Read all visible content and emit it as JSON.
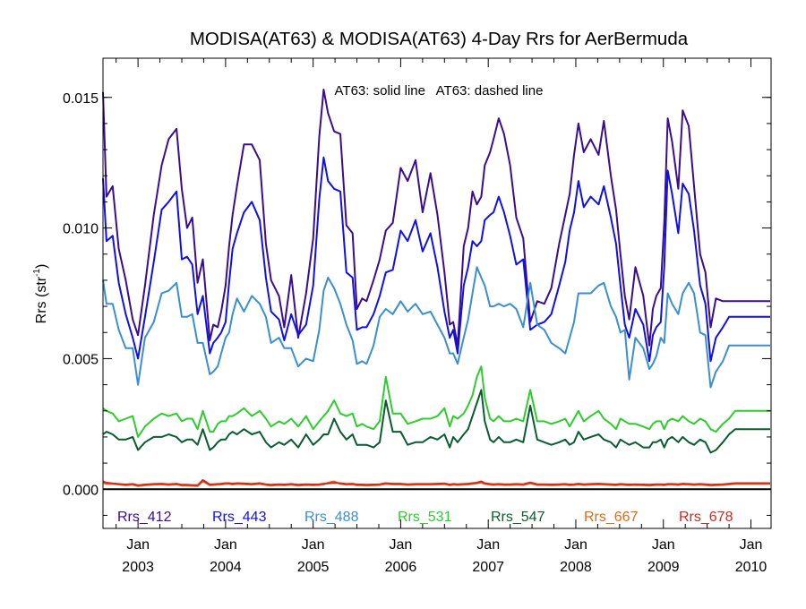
{
  "chart_data": {
    "type": "line",
    "title": "MODISA(AT63) & MODISA(AT63) 4-Day Rrs for AerBermuda",
    "annotation": "AT63: solid line   AT63: dashed line",
    "ylabel_main": "Rrs (str",
    "ylabel_sup": "-1",
    "ylabel_tail": ")",
    "ylim": [
      -0.0015,
      0.0165
    ],
    "xlim": [
      2002.6,
      2010.23
    ],
    "yticks": [
      {
        "v": 0.0,
        "label": "0.000"
      },
      {
        "v": 0.005,
        "label": "0.005"
      },
      {
        "v": 0.01,
        "label": "0.010"
      },
      {
        "v": 0.015,
        "label": "0.015"
      }
    ],
    "xticks": [
      {
        "v": 2003.0,
        "line1": "Jan",
        "line2": "2003"
      },
      {
        "v": 2004.0,
        "line1": "Jan",
        "line2": "2004"
      },
      {
        "v": 2005.0,
        "line1": "Jan",
        "line2": "2005"
      },
      {
        "v": 2006.0,
        "line1": "Jan",
        "line2": "2006"
      },
      {
        "v": 2007.0,
        "line1": "Jan",
        "line2": "2007"
      },
      {
        "v": 2008.0,
        "line1": "Jan",
        "line2": "2008"
      },
      {
        "v": 2009.0,
        "line1": "Jan",
        "line2": "2009"
      },
      {
        "v": 2010.0,
        "line1": "Jan",
        "line2": "2010"
      }
    ],
    "x": [
      2002.58,
      2002.64,
      2002.71,
      2002.78,
      2002.86,
      2002.94,
      2003.0,
      2003.08,
      2003.18,
      2003.27,
      2003.35,
      2003.44,
      2003.5,
      2003.56,
      2003.62,
      2003.68,
      2003.74,
      2003.82,
      2003.86,
      2003.91,
      2003.95,
      2004.0,
      2004.04,
      2004.08,
      2004.13,
      2004.21,
      2004.3,
      2004.39,
      2004.46,
      2004.52,
      2004.61,
      2004.67,
      2004.75,
      2004.83,
      2004.92,
      2005.0,
      2005.07,
      2005.12,
      2005.17,
      2005.24,
      2005.31,
      2005.38,
      2005.45,
      2005.5,
      2005.56,
      2005.61,
      2005.69,
      2005.76,
      2005.83,
      2005.91,
      2006.0,
      2006.08,
      2006.17,
      2006.25,
      2006.34,
      2006.42,
      2006.5,
      2006.56,
      2006.6,
      2006.65,
      2006.72,
      2006.77,
      2006.82,
      2006.87,
      2006.92,
      2006.96,
      2007.02,
      2007.06,
      2007.12,
      2007.18,
      2007.25,
      2007.32,
      2007.4,
      2007.48,
      2007.56,
      2007.64,
      2007.72,
      2007.81,
      2007.88,
      2007.93,
      2007.98,
      2008.03,
      2008.09,
      2008.17,
      2008.26,
      2008.32,
      2008.4,
      2008.46,
      2008.51,
      2008.56,
      2008.61,
      2008.68,
      2008.77,
      2008.84,
      2008.88,
      2008.92,
      2008.97,
      2009.01,
      2009.05,
      2009.1,
      2009.17,
      2009.22,
      2009.29,
      2009.35,
      2009.42,
      2009.48,
      2009.54,
      2009.6,
      2009.68,
      2009.75,
      2009.82,
      2009.88,
      2009.92,
      2009.96,
      2010.02,
      2010.08,
      2010.14,
      2010.22
    ],
    "series": [
      {
        "name": "Rrs_412",
        "color": "#3a0d8f",
        "values": [
          0.0152,
          0.0112,
          0.0116,
          0.0092,
          0.008,
          0.0065,
          0.0059,
          0.0078,
          0.0105,
          0.0124,
          0.0134,
          0.0138,
          0.0115,
          0.01,
          0.0104,
          0.0079,
          0.0088,
          0.0057,
          0.0063,
          0.0062,
          0.0068,
          0.0078,
          0.0093,
          0.0105,
          0.0116,
          0.0132,
          0.0132,
          0.0126,
          0.0094,
          0.008,
          0.0074,
          0.0062,
          0.0082,
          0.0058,
          0.0075,
          0.0096,
          0.0135,
          0.0153,
          0.0144,
          0.0137,
          0.0136,
          0.0101,
          0.0098,
          0.0069,
          0.0073,
          0.0072,
          0.008,
          0.0088,
          0.0099,
          0.0102,
          0.0123,
          0.0118,
          0.0126,
          0.0106,
          0.0121,
          0.0105,
          0.0083,
          0.0063,
          0.0064,
          0.0055,
          0.0093,
          0.01,
          0.0114,
          0.0109,
          0.0112,
          0.0124,
          0.0129,
          0.0134,
          0.0142,
          0.0136,
          0.0124,
          0.0104,
          0.0096,
          0.0064,
          0.0072,
          0.0071,
          0.0077,
          0.0094,
          0.0105,
          0.0113,
          0.0128,
          0.014,
          0.0129,
          0.0134,
          0.0128,
          0.0141,
          0.012,
          0.0107,
          0.009,
          0.0074,
          0.0065,
          0.0085,
          0.0074,
          0.0055,
          0.0069,
          0.0074,
          0.0077,
          0.0102,
          0.0142,
          0.0133,
          0.0115,
          0.0145,
          0.0139,
          0.0116,
          0.009,
          0.0083,
          0.0062,
          0.0073,
          0.0072,
          0.0072,
          0.0072,
          0.0072,
          0.0072,
          0.0072,
          0.0072,
          0.0072,
          0.0072,
          0.0072
        ]
      },
      {
        "name": "Rrs_443",
        "color": "#1010e6",
        "values": [
          0.0119,
          0.0095,
          0.0097,
          0.0079,
          0.0067,
          0.0058,
          0.005,
          0.0066,
          0.0087,
          0.0107,
          0.011,
          0.0114,
          0.0088,
          0.0089,
          0.0086,
          0.0067,
          0.0074,
          0.0052,
          0.0056,
          0.0058,
          0.006,
          0.0064,
          0.0079,
          0.0092,
          0.0098,
          0.0106,
          0.011,
          0.0103,
          0.0081,
          0.0068,
          0.0065,
          0.0057,
          0.0067,
          0.0059,
          0.0063,
          0.0078,
          0.0111,
          0.0127,
          0.0118,
          0.0115,
          0.0114,
          0.0083,
          0.0081,
          0.0061,
          0.0062,
          0.0062,
          0.0067,
          0.0074,
          0.0083,
          0.0084,
          0.0099,
          0.0095,
          0.0103,
          0.0091,
          0.0098,
          0.0085,
          0.0068,
          0.0058,
          0.0061,
          0.0052,
          0.0078,
          0.0085,
          0.0095,
          0.0093,
          0.0095,
          0.0103,
          0.0105,
          0.0106,
          0.0112,
          0.0106,
          0.0097,
          0.0086,
          0.0088,
          0.0061,
          0.0063,
          0.0064,
          0.0067,
          0.0078,
          0.0087,
          0.0099,
          0.0106,
          0.0118,
          0.0108,
          0.0112,
          0.0109,
          0.0116,
          0.0104,
          0.0094,
          0.0078,
          0.0063,
          0.0058,
          0.0069,
          0.0063,
          0.0049,
          0.0059,
          0.0062,
          0.0064,
          0.0085,
          0.0122,
          0.0113,
          0.0098,
          0.0117,
          0.0113,
          0.0099,
          0.0078,
          0.0071,
          0.0049,
          0.0058,
          0.0062,
          0.0066,
          0.0066,
          0.0066,
          0.0066,
          0.0066,
          0.0066,
          0.0066,
          0.0066,
          0.0066
        ]
      },
      {
        "name": "Rrs_488",
        "color": "#3b8fd0",
        "values": [
          0.008,
          0.0071,
          0.0071,
          0.0061,
          0.0054,
          0.0054,
          0.004,
          0.0058,
          0.0064,
          0.0075,
          0.0076,
          0.0079,
          0.0066,
          0.0066,
          0.0067,
          0.0056,
          0.0056,
          0.0044,
          0.0045,
          0.0047,
          0.0052,
          0.0058,
          0.006,
          0.0067,
          0.0073,
          0.0068,
          0.0074,
          0.0071,
          0.0066,
          0.0056,
          0.0058,
          0.0054,
          0.0054,
          0.0047,
          0.005,
          0.0049,
          0.0061,
          0.0076,
          0.0081,
          0.0077,
          0.0071,
          0.0063,
          0.0057,
          0.0048,
          0.0049,
          0.0048,
          0.0055,
          0.0066,
          0.0069,
          0.0067,
          0.0072,
          0.0068,
          0.0071,
          0.0067,
          0.0068,
          0.0063,
          0.0058,
          0.0052,
          0.0052,
          0.0048,
          0.0058,
          0.0065,
          0.0075,
          0.0085,
          0.0081,
          0.0078,
          0.007,
          0.007,
          0.0071,
          0.007,
          0.0071,
          0.0069,
          0.0062,
          0.0079,
          0.0063,
          0.0061,
          0.0056,
          0.0054,
          0.0052,
          0.0058,
          0.0064,
          0.0075,
          0.0075,
          0.0075,
          0.0078,
          0.0079,
          0.007,
          0.0066,
          0.006,
          0.0061,
          0.0042,
          0.0058,
          0.0054,
          0.0046,
          0.0048,
          0.0051,
          0.0058,
          0.0056,
          0.0075,
          0.0071,
          0.0067,
          0.0075,
          0.0079,
          0.0075,
          0.006,
          0.0059,
          0.0039,
          0.0045,
          0.0049,
          0.0055,
          0.0055,
          0.0055,
          0.0055,
          0.0055,
          0.0055,
          0.0055,
          0.0055,
          0.0055
        ]
      },
      {
        "name": "Rrs_531",
        "color": "#2ecc2e",
        "values": [
          0.0031,
          0.003,
          0.0029,
          0.0026,
          0.0027,
          0.0028,
          0.002,
          0.0024,
          0.0027,
          0.0029,
          0.0028,
          0.0029,
          0.0026,
          0.0027,
          0.0027,
          0.0023,
          0.003,
          0.0022,
          0.0022,
          0.0025,
          0.0026,
          0.0026,
          0.0028,
          0.0028,
          0.0029,
          0.0031,
          0.0028,
          0.003,
          0.0027,
          0.0024,
          0.0026,
          0.0025,
          0.0027,
          0.0024,
          0.0028,
          0.0023,
          0.0026,
          0.0028,
          0.003,
          0.0034,
          0.0029,
          0.0028,
          0.0029,
          0.0024,
          0.0025,
          0.0024,
          0.0023,
          0.0026,
          0.0043,
          0.0029,
          0.0029,
          0.0025,
          0.0026,
          0.0027,
          0.0027,
          0.0028,
          0.0031,
          0.0024,
          0.0028,
          0.0027,
          0.0029,
          0.0032,
          0.0036,
          0.0043,
          0.0047,
          0.0035,
          0.0027,
          0.0026,
          0.0028,
          0.0026,
          0.0026,
          0.0027,
          0.0026,
          0.0038,
          0.0026,
          0.0026,
          0.0025,
          0.0026,
          0.0027,
          0.0024,
          0.0027,
          0.003,
          0.0026,
          0.0028,
          0.003,
          0.0027,
          0.0025,
          0.0023,
          0.0027,
          0.0026,
          0.0025,
          0.0025,
          0.0024,
          0.0023,
          0.0025,
          0.0026,
          0.0026,
          0.0023,
          0.0026,
          0.0027,
          0.0026,
          0.0028,
          0.0026,
          0.0025,
          0.0027,
          0.0026,
          0.0023,
          0.0022,
          0.0025,
          0.0027,
          0.003,
          0.003,
          0.003,
          0.003,
          0.003,
          0.003,
          0.003,
          0.003
        ]
      },
      {
        "name": "Rrs_547",
        "color": "#0a5c2e",
        "values": [
          0.0021,
          0.0022,
          0.0021,
          0.0019,
          0.0019,
          0.002,
          0.0015,
          0.0018,
          0.002,
          0.002,
          0.0021,
          0.002,
          0.0018,
          0.0019,
          0.0019,
          0.0017,
          0.0023,
          0.0015,
          0.0016,
          0.0018,
          0.0019,
          0.0019,
          0.0021,
          0.0022,
          0.0021,
          0.0023,
          0.0021,
          0.0022,
          0.0018,
          0.0016,
          0.0018,
          0.0017,
          0.0019,
          0.0016,
          0.0021,
          0.0017,
          0.0019,
          0.0021,
          0.0021,
          0.0027,
          0.0022,
          0.0019,
          0.0021,
          0.0017,
          0.0017,
          0.0017,
          0.0016,
          0.0018,
          0.0034,
          0.0022,
          0.0022,
          0.0017,
          0.0018,
          0.0018,
          0.002,
          0.0019,
          0.0021,
          0.0016,
          0.002,
          0.0018,
          0.0021,
          0.0023,
          0.0028,
          0.0033,
          0.0038,
          0.0026,
          0.0019,
          0.0018,
          0.002,
          0.0018,
          0.0018,
          0.0019,
          0.0018,
          0.0032,
          0.0019,
          0.0018,
          0.0017,
          0.0018,
          0.0019,
          0.0017,
          0.0018,
          0.0022,
          0.0019,
          0.002,
          0.0021,
          0.0019,
          0.0018,
          0.0016,
          0.0019,
          0.0018,
          0.0017,
          0.0018,
          0.0016,
          0.0016,
          0.0018,
          0.0018,
          0.0019,
          0.0016,
          0.0019,
          0.002,
          0.0018,
          0.002,
          0.0018,
          0.0017,
          0.0019,
          0.0018,
          0.0014,
          0.0015,
          0.0018,
          0.0021,
          0.0023,
          0.0023,
          0.0023,
          0.0023,
          0.0023,
          0.0023,
          0.0023,
          0.0023
        ]
      },
      {
        "name": "Rrs_667",
        "color": "#e06a1a",
        "values": [
          0.00025,
          0.0002,
          0.0002,
          0.00018,
          0.00015,
          0.00017,
          0.00012,
          0.00015,
          0.00017,
          0.00018,
          0.00016,
          0.00018,
          0.00014,
          0.00014,
          0.00013,
          0.00012,
          0.0003,
          0.00015,
          0.00016,
          0.00017,
          0.00018,
          0.0002,
          0.0002,
          0.00018,
          0.0002,
          0.00019,
          0.00017,
          0.0002,
          0.00016,
          0.00014,
          0.00016,
          0.00015,
          0.00017,
          0.00014,
          0.00016,
          0.00015,
          0.00016,
          0.00018,
          0.00025,
          0.0003,
          0.0002,
          0.00017,
          0.00018,
          0.00015,
          0.00015,
          0.00014,
          0.00015,
          0.00016,
          0.0002,
          0.00018,
          0.00018,
          0.00016,
          0.00017,
          0.00017,
          0.00017,
          0.00018,
          0.00019,
          0.00015,
          0.00017,
          0.00016,
          0.00017,
          0.00018,
          0.0002,
          0.00022,
          0.00025,
          0.0002,
          0.00017,
          0.00016,
          0.00017,
          0.00016,
          0.00016,
          0.00017,
          0.00016,
          0.00022,
          0.00016,
          0.00016,
          0.00015,
          0.00016,
          0.00017,
          0.00015,
          0.00016,
          0.00018,
          0.00016,
          0.00017,
          0.00018,
          0.00017,
          0.00016,
          0.00015,
          0.00017,
          0.00016,
          0.00015,
          0.00016,
          0.00015,
          0.00014,
          0.00015,
          0.00016,
          0.00016,
          0.00015,
          0.00017,
          0.00017,
          0.00016,
          0.00018,
          0.00017,
          0.00016,
          0.00017,
          0.00016,
          0.00014,
          0.00015,
          0.00016,
          0.00018,
          0.0002,
          0.0002,
          0.0002,
          0.0002,
          0.0002,
          0.0002,
          0.0002,
          0.0002
        ]
      },
      {
        "name": "Rrs_678",
        "color": "#cc2a22",
        "values": [
          0.0003,
          0.00025,
          0.00022,
          0.0002,
          0.00018,
          0.0002,
          0.00015,
          0.00018,
          0.0002,
          0.00021,
          0.00019,
          0.00021,
          0.00017,
          0.00017,
          0.00016,
          0.00015,
          0.00035,
          0.00018,
          0.00019,
          0.0002,
          0.00021,
          0.00023,
          0.00023,
          0.00021,
          0.00023,
          0.00022,
          0.0002,
          0.00023,
          0.00019,
          0.00017,
          0.00019,
          0.00018,
          0.0002,
          0.00017,
          0.00019,
          0.00018,
          0.00019,
          0.00021,
          0.00022,
          0.00024,
          0.00023,
          0.0002,
          0.00021,
          0.00018,
          0.00018,
          0.00017,
          0.00018,
          0.00019,
          0.00023,
          0.00021,
          0.00021,
          0.00019,
          0.0002,
          0.0002,
          0.0002,
          0.00021,
          0.00022,
          0.00018,
          0.0002,
          0.00019,
          0.0002,
          0.00021,
          0.00023,
          0.00025,
          0.0003,
          0.00023,
          0.0002,
          0.00019,
          0.0002,
          0.00019,
          0.00019,
          0.0002,
          0.00019,
          0.00026,
          0.00019,
          0.00019,
          0.00018,
          0.00019,
          0.0002,
          0.00018,
          0.00019,
          0.00021,
          0.00019,
          0.0002,
          0.00021,
          0.0002,
          0.00019,
          0.00018,
          0.0002,
          0.00019,
          0.00018,
          0.00019,
          0.00018,
          0.00017,
          0.00018,
          0.00019,
          0.00019,
          0.00018,
          0.0002,
          0.0002,
          0.00019,
          0.00021,
          0.0002,
          0.00019,
          0.0002,
          0.00019,
          0.00017,
          0.00018,
          0.00019,
          0.00021,
          0.00023,
          0.00023,
          0.00023,
          0.00023,
          0.00023,
          0.00023,
          0.00023,
          0.00023
        ]
      }
    ]
  }
}
